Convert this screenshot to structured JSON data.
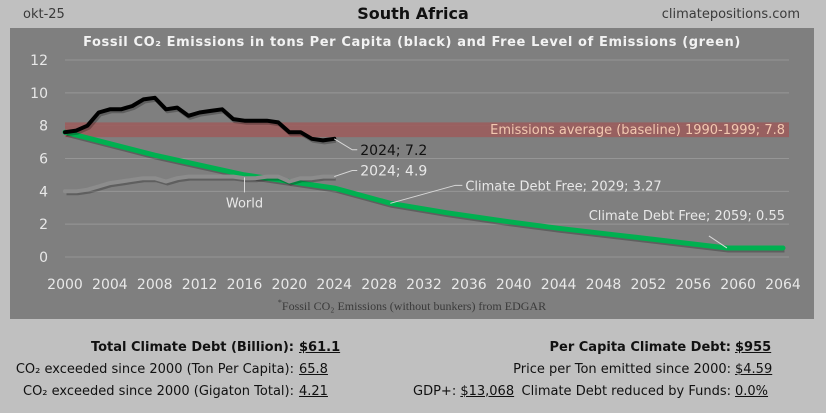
{
  "header": {
    "date": "okt-25",
    "country": "South Africa",
    "site": "climatepositions.com"
  },
  "chart_data": {
    "type": "line",
    "title": "Fossil CO₂ Emissions in tons Per Capita (black) and Free Level of Emissions (green)",
    "xlabel": "",
    "ylabel": "",
    "xlim": [
      2000,
      2065
    ],
    "ylim": [
      0,
      12
    ],
    "grid": true,
    "x_ticks": [
      "2000",
      "2004",
      "2008",
      "2012",
      "2016",
      "2020",
      "2024",
      "2028",
      "2032",
      "2036",
      "2040",
      "2044",
      "2048",
      "2052",
      "2056",
      "2060",
      "2064"
    ],
    "y_ticks": [
      "0",
      "2",
      "4",
      "6",
      "8",
      "10",
      "12"
    ],
    "series": [
      {
        "name": "South Africa fossil CO2 per capita",
        "color": "#000000",
        "x": [
          2000,
          2001,
          2002,
          2003,
          2004,
          2005,
          2006,
          2007,
          2008,
          2009,
          2010,
          2011,
          2012,
          2013,
          2014,
          2015,
          2016,
          2017,
          2018,
          2019,
          2020,
          2021,
          2022,
          2023,
          2024
        ],
        "values": [
          7.6,
          7.7,
          8.0,
          8.8,
          9.0,
          9.0,
          9.2,
          9.6,
          9.7,
          9.0,
          9.1,
          8.6,
          8.8,
          8.9,
          9.0,
          8.4,
          8.3,
          8.3,
          8.3,
          8.2,
          7.6,
          7.6,
          7.2,
          7.1,
          7.2
        ]
      },
      {
        "name": "World",
        "color": "#8c8c8c",
        "x": [
          2000,
          2001,
          2002,
          2003,
          2004,
          2005,
          2006,
          2007,
          2008,
          2009,
          2010,
          2011,
          2012,
          2013,
          2014,
          2015,
          2016,
          2017,
          2018,
          2019,
          2020,
          2021,
          2022,
          2023,
          2024
        ],
        "values": [
          4.0,
          4.0,
          4.1,
          4.3,
          4.5,
          4.6,
          4.7,
          4.8,
          4.8,
          4.6,
          4.8,
          4.9,
          4.9,
          4.9,
          4.9,
          4.9,
          4.8,
          4.8,
          4.9,
          4.9,
          4.6,
          4.8,
          4.8,
          4.9,
          4.9
        ]
      },
      {
        "name": "Free Level of Emissions",
        "color": "#00b050",
        "x": [
          2000,
          2004,
          2008,
          2012,
          2016,
          2020,
          2024,
          2029,
          2034,
          2039,
          2044,
          2049,
          2054,
          2059,
          2064
        ],
        "values": [
          7.6,
          6.9,
          6.2,
          5.6,
          5.0,
          4.6,
          4.2,
          3.27,
          2.7,
          2.2,
          1.75,
          1.35,
          0.95,
          0.55,
          0.55
        ]
      }
    ],
    "baseline": {
      "label": "Emissions average (baseline) 1990-1999; 7.8",
      "value": 7.8,
      "color": "#9c5a5a"
    },
    "annotations": [
      {
        "text": "2024; 7.2",
        "x": 2024,
        "y": 7.2
      },
      {
        "text": "2024; 4.9",
        "x": 2024,
        "y": 4.9
      },
      {
        "text": "World",
        "x": 2016,
        "y": 4.9
      },
      {
        "text": "Climate Debt Free; 2029; 3.27",
        "x": 2029,
        "y": 3.27
      },
      {
        "text": "Climate Debt Free; 2059; 0.55",
        "x": 2059,
        "y": 0.55
      }
    ],
    "footnote_mark": "*",
    "footnote": "Fossil CO₂ Emissions (without bunkers) from EDGAR"
  },
  "stats": {
    "total_debt_label": "Total Climate Debt (Billion):",
    "total_debt_value": "$61.1",
    "co2_percap_label": "CO₂ exceeded since 2000 (Ton Per Capita):",
    "co2_percap_value": "65.8",
    "co2_total_label": "CO₂ exceeded since 2000 (Gigaton Total):",
    "co2_total_value": "4.21",
    "gdp_label": "GDP+:",
    "gdp_value": "$13,068",
    "percap_debt_label": "Per Capita Climate Debt:",
    "percap_debt_value": "$955",
    "price_label": "Price per Ton emitted since 2000:",
    "price_value": "$4.59",
    "funds_label": "Climate Debt reduced by Funds:",
    "funds_value": "0.0%"
  }
}
